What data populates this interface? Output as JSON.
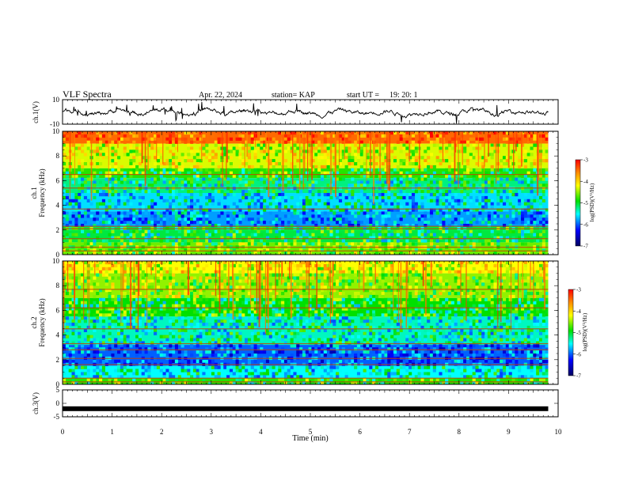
{
  "header": {
    "title": "VLF Spectra",
    "date": "Apr. 22, 2024",
    "station": "station= KAP",
    "start": "start UT =",
    "start_time": "19: 20: 1"
  },
  "panels": {
    "ch1_wave": {
      "ylabel": "ch.1(V)",
      "yticks": [
        "10",
        "-10"
      ]
    },
    "ch1_spec": {
      "ylabel": "ch.1",
      "ylabel2": "Frequency (kHz)",
      "yticks": [
        "0",
        "2",
        "4",
        "6",
        "8",
        "10"
      ]
    },
    "ch2_spec": {
      "ylabel": "ch.2",
      "ylabel2": "Frequency (kHz)",
      "yticks": [
        "0",
        "2",
        "4",
        "6",
        "8",
        "10"
      ]
    },
    "ch3_wave": {
      "ylabel": "ch.3(V)",
      "yticks": [
        "5",
        "0",
        "-5"
      ]
    }
  },
  "colorbar": {
    "label": "log(PSD)(V²/Hz)",
    "ticks": [
      "-3",
      "-4",
      "-5",
      "-6",
      "-7"
    ],
    "colors": [
      "#ff0000",
      "#ffa500",
      "#ffff00",
      "#00e000",
      "#00ffff",
      "#0000ff",
      "#000080"
    ]
  },
  "chart_data": [
    {
      "type": "line",
      "title": "ch.1 waveform",
      "ylabel": "ch.1(V)",
      "xlim": [
        0,
        10
      ],
      "ylim": [
        -10,
        10
      ],
      "x_extent": [
        0,
        9.8
      ],
      "description_values": {
        "baseline": 0,
        "amplitude_range": [
          -6,
          6
        ]
      }
    },
    {
      "type": "heatmap",
      "ylabel": "Frequency (kHz)",
      "xlim": [
        0,
        10
      ],
      "ylim": [
        0,
        10
      ],
      "color_scale": {
        "min": -7,
        "max": -3
      },
      "bands_khz": [
        {
          "from": 9.0,
          "to": 10.0,
          "level": -3.6
        },
        {
          "from": 7.0,
          "to": 9.0,
          "level": -4.5
        },
        {
          "from": 6.2,
          "to": 7.0,
          "level": -5.0
        },
        {
          "from": 5.0,
          "to": 6.2,
          "level": -5.3
        },
        {
          "from": 3.5,
          "to": 5.0,
          "level": -5.6
        },
        {
          "from": 2.3,
          "to": 3.5,
          "level": -5.8
        },
        {
          "from": 1.0,
          "to": 2.3,
          "level": -5.2
        },
        {
          "from": 0.0,
          "to": 1.0,
          "level": -4.8
        }
      ],
      "lines_khz": [
        0.3,
        0.6,
        1.3,
        2.1,
        2.3,
        3.7,
        5.4,
        6.5
      ],
      "x_extent": [
        0,
        9.8
      ]
    },
    {
      "type": "heatmap",
      "ylabel": "Frequency (kHz)",
      "xlim": [
        0,
        10
      ],
      "ylim": [
        0,
        10
      ],
      "color_scale": {
        "min": -7,
        "max": -3
      },
      "bands_khz": [
        {
          "from": 9.0,
          "to": 10.0,
          "level": -4.4
        },
        {
          "from": 7.0,
          "to": 9.0,
          "level": -4.7
        },
        {
          "from": 5.5,
          "to": 7.0,
          "level": -5.1
        },
        {
          "from": 3.2,
          "to": 5.5,
          "level": -5.4
        },
        {
          "from": 1.5,
          "to": 3.2,
          "level": -6.0
        },
        {
          "from": 0.5,
          "to": 1.5,
          "level": -5.5
        },
        {
          "from": 0.0,
          "to": 0.5,
          "level": -5.0
        }
      ],
      "lines_khz": [
        0.2,
        0.5,
        1.6,
        2.1,
        2.8,
        3.3,
        4.5,
        6.2,
        7.7
      ],
      "x_extent": [
        0,
        9.8
      ]
    },
    {
      "type": "line",
      "title": "ch.3 waveform",
      "ylabel": "ch.3(V)",
      "xlim": [
        0,
        10
      ],
      "ylim": [
        -5,
        5
      ],
      "x_extent": [
        0,
        9.8
      ],
      "description_values": {
        "constant_level": -2
      }
    }
  ],
  "xaxis": {
    "label": "Time (min)",
    "ticks": [
      "0",
      "1",
      "2",
      "3",
      "4",
      "5",
      "6",
      "7",
      "8",
      "9",
      "10"
    ]
  }
}
